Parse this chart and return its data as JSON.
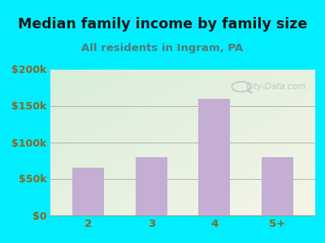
{
  "title": "Median family income by family size",
  "subtitle": "All residents in Ingram, PA",
  "categories": [
    "2",
    "3",
    "4",
    "5+"
  ],
  "values": [
    65000,
    80000,
    160000,
    80000
  ],
  "bar_color": "#c4aed4",
  "title_fontsize": 12.5,
  "subtitle_fontsize": 9.5,
  "title_color": "#1a1a1a",
  "subtitle_color": "#557777",
  "tick_color": "#886622",
  "ylim": [
    0,
    200000
  ],
  "yticks": [
    0,
    50000,
    100000,
    150000,
    200000
  ],
  "ytick_labels": [
    "$0",
    "$50k",
    "$100k",
    "$150k",
    "$200k"
  ],
  "background_outer": "#00eeff",
  "watermark_text": "City-Data.com",
  "watermark_color": "#bbbbcc",
  "grad_top_left": "#d8eed8",
  "grad_bottom_right": "#f5f5e8"
}
